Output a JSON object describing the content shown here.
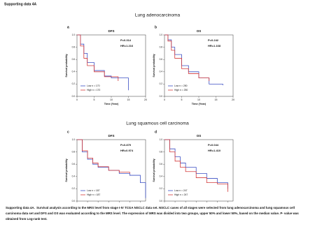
{
  "header": "Supporting data 4A",
  "sections": [
    "Lung adenocarcinoma",
    "Lung squamous cell carcinoma"
  ],
  "panels": [
    {
      "label": "a",
      "title": "DFS",
      "p_value": "P=0.314",
      "hr": "HR=1.216",
      "xlim": [
        0,
        20
      ],
      "xticks": [
        0,
        5,
        10,
        15,
        20
      ],
      "ylim": [
        0,
        1
      ],
      "yticks": [
        {
          "value": 0,
          "label": "0.0"
        },
        0.2,
        0.4,
        0.6,
        0.8,
        {
          "value": 1,
          "label": "1.0"
        }
      ],
      "x_label": "Time (Year)",
      "y_label": "Survival probability",
      "series": [
        {
          "name": "Low  n = 170",
          "color": "#3b4fc4",
          "x": [
            0,
            1,
            2,
            3,
            5,
            8,
            10,
            15
          ],
          "values": [
            1,
            0.85,
            0.7,
            0.55,
            0.42,
            0.33,
            0.3,
            0.1
          ]
        },
        {
          "name": "High n = 170",
          "color": "#d43a3a",
          "x": [
            0,
            1,
            2,
            3,
            5,
            8,
            12
          ],
          "values": [
            1,
            0.82,
            0.62,
            0.5,
            0.4,
            0.32,
            0.25
          ]
        }
      ]
    },
    {
      "label": "b",
      "title": "OS",
      "p_value": "P=0.242",
      "hr": "HR=1.168",
      "xlim": [
        0,
        20
      ],
      "xticks": [
        0,
        5,
        10,
        15,
        20
      ],
      "ylim": [
        0,
        1
      ],
      "yticks": [
        {
          "value": 0,
          "label": "0.0"
        },
        0.2,
        0.4,
        0.6,
        0.8,
        {
          "value": 1,
          "label": "1.0"
        }
      ],
      "x_label": "Time (Year)",
      "y_label": "Survival probability",
      "series": [
        {
          "name": "Low  n = 250",
          "color": "#3b4fc4",
          "x": [
            0,
            1,
            2,
            3,
            5,
            7,
            10,
            13,
            17
          ],
          "values": [
            1,
            0.92,
            0.8,
            0.68,
            0.5,
            0.4,
            0.3,
            0.2,
            0.18
          ]
        },
        {
          "name": "High n = 250",
          "color": "#d43a3a",
          "x": [
            0,
            1,
            2,
            3,
            5,
            7,
            10,
            13
          ],
          "values": [
            1,
            0.9,
            0.75,
            0.62,
            0.45,
            0.37,
            0.3,
            0.25
          ]
        }
      ]
    },
    {
      "label": "c",
      "title": "DFS",
      "p_value": "P=0.879",
      "hr": "HR=0.974",
      "xlim": [
        0,
        13
      ],
      "xticks": [
        0,
        2,
        4,
        6,
        8,
        10,
        12
      ],
      "ylim": [
        0,
        1
      ],
      "yticks": [
        {
          "value": 0,
          "label": "0.0"
        },
        0.2,
        0.4,
        0.6,
        0.8,
        {
          "value": 1,
          "label": "1.0"
        }
      ],
      "x_label": "Time (Year)",
      "y_label": "Survival probability",
      "series": [
        {
          "name": "Low  n = 187",
          "color": "#3b4fc4",
          "x": [
            0,
            1,
            2,
            3,
            4,
            6,
            8,
            10,
            12,
            13
          ],
          "values": [
            1,
            0.8,
            0.68,
            0.6,
            0.55,
            0.5,
            0.45,
            0.42,
            0.3,
            0.05
          ]
        },
        {
          "name": "High n = 187",
          "color": "#d43a3a",
          "x": [
            0,
            1,
            2,
            3,
            4,
            6,
            8,
            10
          ],
          "values": [
            1,
            0.82,
            0.7,
            0.62,
            0.56,
            0.5,
            0.47,
            0.45
          ]
        }
      ]
    },
    {
      "label": "d",
      "title": "OS",
      "p_value": "P=0.044",
      "hr": "HR=1.410",
      "xlim": [
        0,
        13
      ],
      "xticks": [
        0,
        2,
        4,
        6,
        8,
        10,
        12
      ],
      "ylim": [
        0,
        1
      ],
      "yticks": [
        {
          "value": 0,
          "label": "0.0"
        },
        0.2,
        0.4,
        0.6,
        0.8,
        {
          "value": 1,
          "label": "1.0"
        }
      ],
      "x_label": "Time (Year)",
      "y_label": "Survival probability",
      "series": [
        {
          "name": "Low  n = 247",
          "color": "#3b4fc4",
          "x": [
            0,
            1,
            2,
            3,
            4,
            6,
            8,
            10,
            12
          ],
          "values": [
            1,
            0.85,
            0.72,
            0.62,
            0.55,
            0.45,
            0.37,
            0.3,
            0.2
          ]
        },
        {
          "name": "High n = 247",
          "color": "#d43a3a",
          "x": [
            0,
            1,
            2,
            3,
            4,
            6,
            8,
            10,
            12
          ],
          "values": [
            1,
            0.8,
            0.65,
            0.55,
            0.48,
            0.38,
            0.3,
            0.28,
            0.15
          ]
        }
      ]
    }
  ],
  "caption": {
    "lead": "Supporting data 4A.",
    "text": "Survival analysis according to the MRS level from stage I-IV TCGA NSCLC data set. NSCLC cases of all stages were selected from lung adenocarcinoma and lung squamous cell carcinoma data set and DFS and OS was evaluated according to the MRS level. The expression of MRS was divided into two groups, upper 50% and lower 50%, based on the median value. P- value was obtained from Log-rank test."
  }
}
